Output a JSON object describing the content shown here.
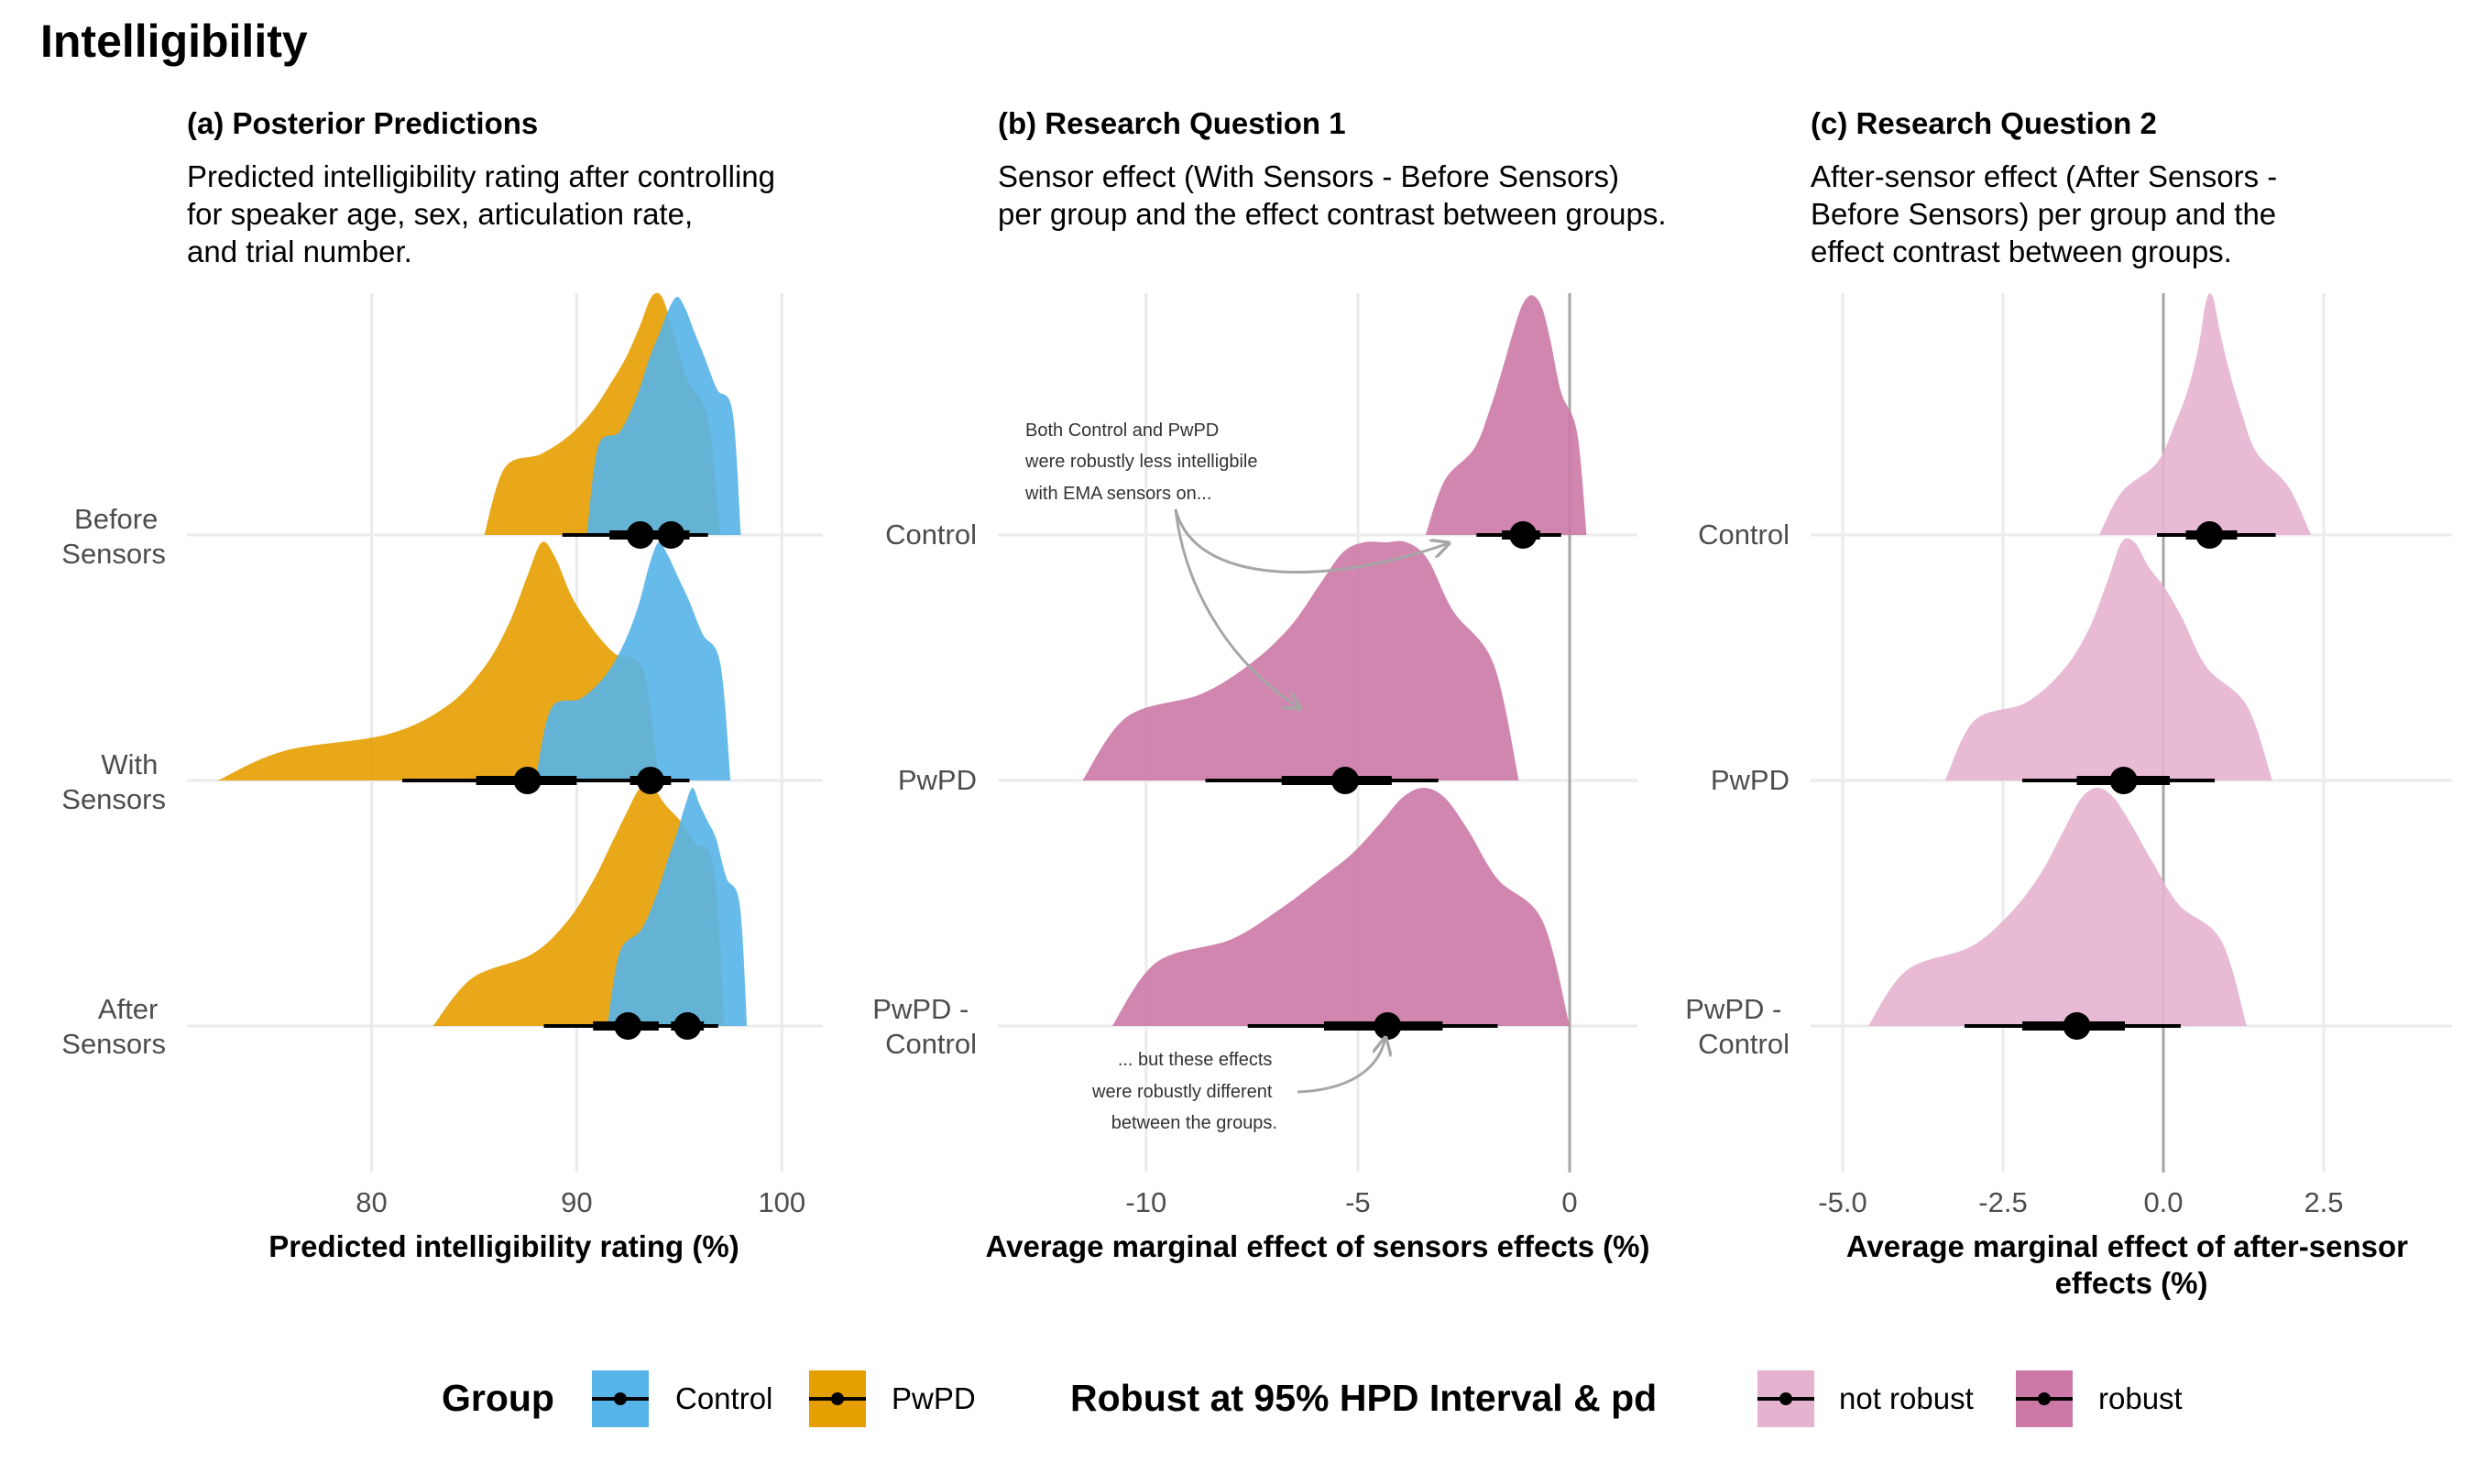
{
  "title": "Intelligibility",
  "colors": {
    "control": "#56B4E9",
    "pwpd": "#E69F00",
    "robust": "#CC79A7",
    "not_robust": "#E5B3CF",
    "grid": "#EBEBEB",
    "zero_line": "#A6A6A6",
    "annotation_arrow": "#A6A6A6"
  },
  "legend": {
    "group": {
      "title": "Group",
      "items": [
        {
          "label": "Control"
        },
        {
          "label": "PwPD"
        }
      ]
    },
    "robust": {
      "title": "Robust at 95% HPD Interval & pd",
      "items": [
        {
          "label": "not robust"
        },
        {
          "label": "robust"
        }
      ]
    }
  },
  "chart_data": [
    {
      "type": "area",
      "panel_title": "(a) Posterior Predictions",
      "subtitle": [
        "Predicted intelligibility rating after controlling",
        "for speaker age, sex, articulation rate,",
        "and trial number."
      ],
      "xlabel": "Predicted intelligibility rating (%)",
      "xlim": [
        71,
        102
      ],
      "xticks": [
        80,
        90,
        100
      ],
      "ytick_labels": [
        [
          "Before",
          "Sensors"
        ],
        [
          "With",
          "Sensors"
        ],
        [
          "After",
          "Sensors"
        ]
      ],
      "grid": true,
      "series": [
        {
          "name": "PwPD",
          "row": 0,
          "median": 93.1,
          "q66": [
            91.6,
            94.2
          ],
          "q95": [
            89.3,
            95.3
          ],
          "dist": [
            85.5,
            87.5,
            89,
            90.3,
            91.3,
            92.1,
            92.8,
            93.4,
            93.9,
            94.4,
            95,
            95.8,
            97
          ]
        },
        {
          "name": "Control",
          "row": 0,
          "median": 94.6,
          "q66": [
            93.8,
            95.5
          ],
          "q95": [
            92.2,
            96.4
          ],
          "dist": [
            90.5,
            91.6,
            92.6,
            93.3,
            93.8,
            94.3,
            94.7,
            95.1,
            95.5,
            96,
            96.5,
            97.2,
            98
          ]
        },
        {
          "name": "PwPD",
          "row": 1,
          "median": 87.6,
          "q66": [
            85.1,
            90.0
          ],
          "q95": [
            81.5,
            92.1
          ],
          "dist": [
            72.5,
            79,
            82.5,
            84.8,
            86.2,
            87.2,
            88,
            88.6,
            89.3,
            90.2,
            91.2,
            92.5,
            94
          ]
        },
        {
          "name": "Control",
          "row": 1,
          "median": 93.6,
          "q66": [
            92.6,
            94.6
          ],
          "q95": [
            90.9,
            95.5
          ],
          "dist": [
            88,
            89.5,
            90.9,
            91.9,
            92.7,
            93.3,
            93.8,
            94.2,
            94.7,
            95.2,
            95.8,
            96.5,
            97.5
          ]
        },
        {
          "name": "PwPD",
          "row": 2,
          "median": 92.5,
          "q66": [
            90.8,
            94.0
          ],
          "q95": [
            88.4,
            95.3
          ],
          "dist": [
            83,
            86.8,
            88.8,
            90.3,
            91.3,
            92.1,
            92.8,
            93.4,
            94,
            94.7,
            95.4,
            96.2,
            97.2
          ]
        },
        {
          "name": "Control",
          "row": 2,
          "median": 95.4,
          "q66": [
            94.6,
            96.2
          ],
          "q95": [
            93.4,
            96.9
          ],
          "dist": [
            91.5,
            92.7,
            93.6,
            94.2,
            94.7,
            95.1,
            95.5,
            95.8,
            96.2,
            96.6,
            97,
            97.6,
            98.3
          ]
        }
      ]
    },
    {
      "type": "area",
      "panel_title": "(b) Research Question 1",
      "subtitle": [
        "Sensor effect (With Sensors - Before Sensors)",
        "per group and the effect contrast between groups."
      ],
      "xlabel": "Average marginal effect of sensors effects (%)",
      "xlim": [
        -13.5,
        1.6
      ],
      "xticks": [
        -10,
        -5,
        0
      ],
      "ytick_labels": [
        [
          "Control"
        ],
        [
          "PwPD"
        ],
        [
          "PwPD -",
          "Control"
        ]
      ],
      "grid": true,
      "zero_line": 0,
      "annotations": [
        {
          "lines": [
            "Both Control and PwPD",
            "were robustly less intelligbile",
            "with EMA sensors on..."
          ]
        },
        {
          "lines": [
            "... but these effects",
            "were robustly different",
            "between the groups."
          ]
        }
      ],
      "series": [
        {
          "name": "robust",
          "row": 0,
          "median": -1.1,
          "q66": [
            -1.6,
            -0.7
          ],
          "q95": [
            -2.2,
            -0.2
          ],
          "dist": [
            -3.4,
            -2.5,
            -2.0,
            -1.7,
            -1.45,
            -1.25,
            -1.07,
            -0.9,
            -0.73,
            -0.55,
            -0.35,
            -0.05,
            0.4
          ]
        },
        {
          "name": "robust",
          "row": 1,
          "median": -5.3,
          "q66": [
            -6.8,
            -4.2
          ],
          "q95": [
            -8.6,
            -3.1
          ],
          "dist": [
            -11.5,
            -9.4,
            -8.0,
            -7.0,
            -6.2,
            -5.6,
            -5.1,
            -4.6,
            -4.1,
            -3.6,
            -3.1,
            -2.4,
            -1.2
          ]
        },
        {
          "name": "robust",
          "row": 2,
          "median": -4.3,
          "q66": [
            -5.8,
            -3.0
          ],
          "q95": [
            -7.6,
            -1.7
          ],
          "dist": [
            -10.8,
            -8.7,
            -7.3,
            -6.3,
            -5.5,
            -4.8,
            -4.2,
            -3.7,
            -3.2,
            -2.7,
            -2.1,
            -1.3,
            0
          ]
        }
      ]
    },
    {
      "type": "area",
      "panel_title": "(c) Research Question 2",
      "subtitle": [
        "After-sensor effect (After Sensors -",
        "Before Sensors) per group and the",
        "effect contrast between groups."
      ],
      "xlabel": [
        "Average marginal effect of after-sensor",
        "effects (%)"
      ],
      "xlim": [
        -5.5,
        4.5
      ],
      "xticks": [
        -5.0,
        -2.5,
        0.0,
        2.5
      ],
      "xtick_labels": [
        "-5.0",
        "-2.5",
        "0.0",
        "2.5"
      ],
      "ytick_labels": [
        [
          "Control"
        ],
        [
          "PwPD"
        ],
        [
          "PwPD -",
          "Control"
        ]
      ],
      "grid": true,
      "zero_line": 0,
      "series": [
        {
          "name": "not robust",
          "row": 0,
          "median": 0.72,
          "q66": [
            0.35,
            1.15
          ],
          "q95": [
            -0.1,
            1.75
          ],
          "dist": [
            -1.0,
            -0.3,
            0.1,
            0.3,
            0.48,
            0.62,
            0.72,
            0.82,
            0.95,
            1.1,
            1.3,
            1.6,
            2.3
          ]
        },
        {
          "name": "not robust",
          "row": 1,
          "median": -0.62,
          "q66": [
            -1.35,
            0.1
          ],
          "q95": [
            -2.2,
            0.8
          ],
          "dist": [
            -3.4,
            -2.5,
            -1.8,
            -1.35,
            -1.0,
            -0.75,
            -0.55,
            -0.35,
            -0.1,
            0.15,
            0.45,
            0.9,
            1.7
          ]
        },
        {
          "name": "not robust",
          "row": 2,
          "median": -1.35,
          "q66": [
            -2.2,
            -0.6
          ],
          "q95": [
            -3.1,
            0.27
          ],
          "dist": [
            -4.6,
            -3.4,
            -2.6,
            -2.1,
            -1.7,
            -1.4,
            -1.15,
            -0.9,
            -0.65,
            -0.35,
            0.0,
            0.5,
            1.3
          ]
        }
      ]
    }
  ]
}
